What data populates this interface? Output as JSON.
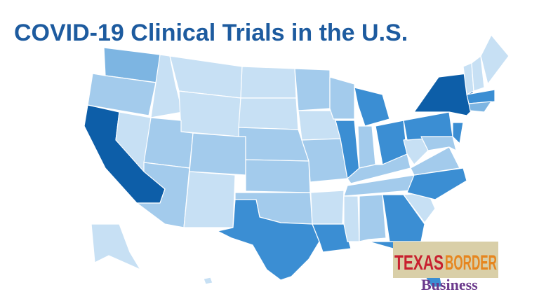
{
  "title": "COVID-19 Clinical Trials in the U.S.",
  "logo": {
    "word1": "TEXAS",
    "word2": "BORDER",
    "word3": "Business"
  }
}
